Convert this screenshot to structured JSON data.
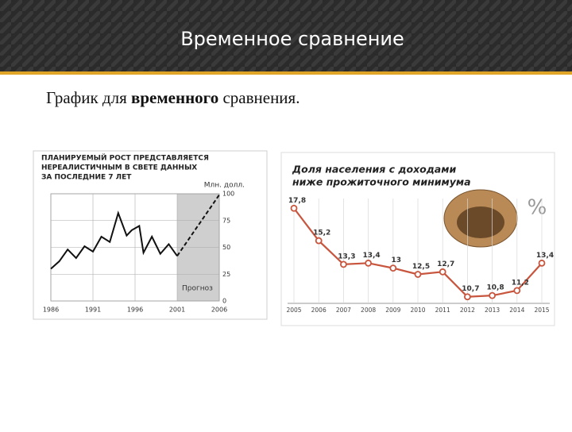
{
  "slide": {
    "title": "Временное сравнение",
    "text": [
      "График для ",
      "временного",
      " сравнения."
    ]
  },
  "chart_data": [
    {
      "type": "line",
      "title": [
        "ПЛАНИРУЕМЫЙ РОСТ ПРЕДСТАВЛЯЕТСЯ",
        "НЕРЕАЛИСТИЧНЫМ В СВЕТЕ ДАННЫХ",
        "ЗА ПОСЛЕДНИЕ 7 ЛЕТ"
      ],
      "y_label": "Млн. долл.",
      "x": [
        1986,
        1987,
        1988,
        1989,
        1990,
        1991,
        1992,
        1993,
        1994,
        1995,
        1995.6,
        1996.5,
        1997,
        1998,
        1999,
        2000,
        2001,
        2006
      ],
      "series": [
        {
          "color": "#111111",
          "dash": false,
          "values": [
            30,
            37,
            48,
            40,
            51,
            46,
            60,
            55,
            82,
            61,
            66,
            70,
            45,
            60,
            44,
            53,
            42,
            null
          ]
        },
        {
          "color": "#111111",
          "dash": true,
          "values": [
            null,
            null,
            null,
            null,
            null,
            null,
            null,
            null,
            null,
            null,
            null,
            null,
            null,
            null,
            null,
            null,
            42,
            99
          ]
        }
      ],
      "forecast_region": {
        "xlim": [
          2001,
          2006
        ],
        "label": "Прогноз",
        "color": "#cfcfcf"
      },
      "xlim": [
        1986,
        2006
      ],
      "xticks": [
        1986,
        1991,
        1996,
        2001,
        2006
      ],
      "ylim": [
        0,
        100
      ],
      "yticks": [
        0,
        25,
        50,
        75,
        100
      ],
      "grid": true
    },
    {
      "type": "line",
      "title": [
        "Доля населения с доходами",
        "ниже прожиточного минимума"
      ],
      "unit": "%",
      "categories": [
        "2005",
        "2006",
        "2007",
        "2008",
        "2009",
        "2010",
        "2011",
        "2012",
        "2013",
        "2014",
        "2015"
      ],
      "values": [
        17.8,
        15.2,
        13.3,
        13.4,
        13,
        12.5,
        12.7,
        10.7,
        10.8,
        11.2,
        13.4
      ],
      "value_labels": [
        "17,8",
        "15,2",
        "13,3",
        "13,4",
        "13",
        "12,5",
        "12,7",
        "10,7",
        "10,8",
        "11,2",
        "13,4"
      ],
      "color": "#c8553d",
      "ylim": [
        10.3,
        18.9
      ],
      "grid": true
    }
  ]
}
